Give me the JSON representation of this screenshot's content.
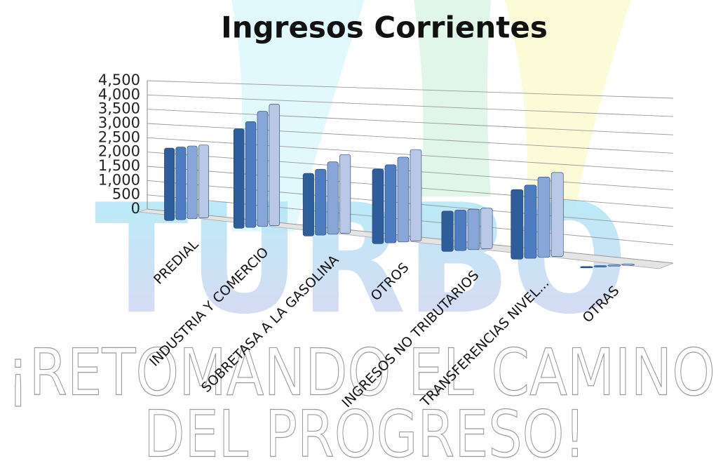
{
  "chart_data": {
    "type": "bar3d",
    "title": "Ingresos Corrientes",
    "categories": [
      "PREDIAL",
      "INDUSTRIA Y COMERCIO",
      "SOBRETASA A LA GASOLINA",
      "OTROS",
      "INGRESOS NO TRIBUTARIOS",
      "TRANSFERENCIAS NIVEL...",
      "OTRAS"
    ],
    "series": [
      {
        "color": "#2e5d9c",
        "values": [
          2500,
          3300,
          2000,
          2300,
          1200,
          2000,
          10
        ]
      },
      {
        "color": "#4d7cc0",
        "values": [
          2500,
          3500,
          2100,
          2400,
          1200,
          2100,
          10
        ]
      },
      {
        "color": "#88a6d8",
        "values": [
          2500,
          3800,
          2300,
          2600,
          1200,
          2300,
          10
        ]
      },
      {
        "color": "#b9c8e6",
        "values": [
          2500,
          4000,
          2500,
          2800,
          1200,
          2400,
          10
        ]
      }
    ],
    "ylim": [
      0,
      4500
    ],
    "yticks": [
      0,
      500,
      {
        "value": 1000,
        "label": "1,000"
      },
      {
        "value": 1500,
        "label": "1,500"
      },
      {
        "value": 2000,
        "label": "2,000"
      },
      {
        "value": 2500,
        "label": "2,500"
      },
      {
        "value": 3000,
        "label": "3,000"
      },
      {
        "value": 3500,
        "label": "3,500"
      },
      {
        "value": 4000,
        "label": "4,000"
      },
      {
        "value": 4500,
        "label": "4,500"
      }
    ],
    "grid": true
  },
  "background": {
    "logo": "TURBO",
    "slogan_line1": "¡RETOMANDO EL CAMINO",
    "slogan_line2": "DEL PROGRESO!"
  }
}
